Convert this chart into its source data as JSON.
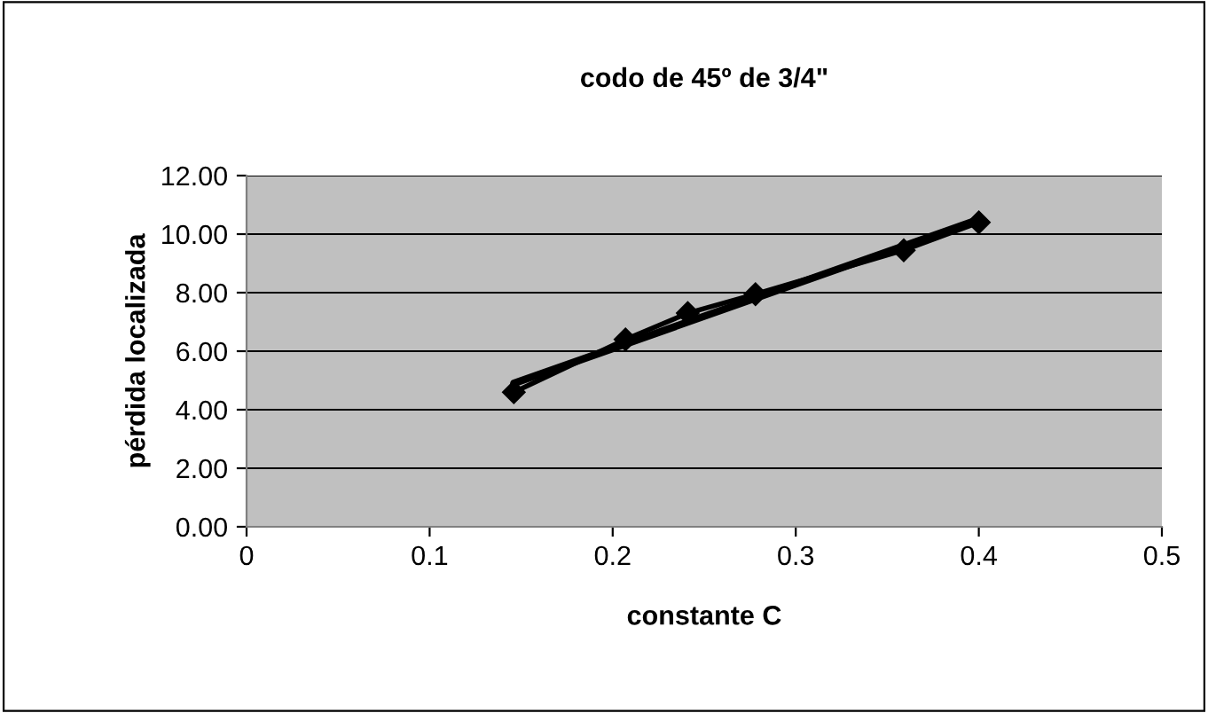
{
  "chart_data": {
    "type": "line",
    "title": "codo de 45º de 3/4\"",
    "xlabel": "constante C",
    "ylabel": "pérdida localizada",
    "series": [
      {
        "color": "#000000",
        "x": [
          0.146,
          0.207,
          0.241,
          0.278,
          0.359,
          0.4
        ],
        "values": [
          4.6,
          6.4,
          7.3,
          7.95,
          9.45,
          10.4
        ],
        "marker": "diamond"
      },
      {
        "type": "line",
        "color": "#000000",
        "x": [
          0.146,
          0.4
        ],
        "values": [
          4.9,
          10.5
        ]
      }
    ],
    "xlim": [
      0,
      0.5
    ],
    "xticks": [
      0,
      0.1,
      0.2,
      0.3,
      0.4,
      0.5
    ],
    "ylim": [
      0,
      12
    ],
    "yticks": [
      {
        "value": 0,
        "label": "0.00"
      },
      {
        "value": 2,
        "label": "2.00"
      },
      {
        "value": 4,
        "label": "4.00"
      },
      {
        "value": 6,
        "label": "6.00"
      },
      {
        "value": 8,
        "label": "8.00"
      },
      {
        "value": 10,
        "label": "10.00"
      },
      {
        "value": 12,
        "label": "12.00"
      }
    ],
    "grid": "y",
    "legend": false
  }
}
